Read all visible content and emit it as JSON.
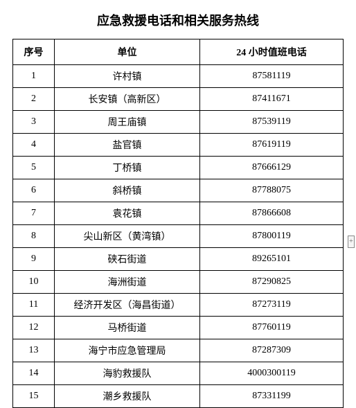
{
  "title": "应急救援电话和相关服务热线",
  "columns": {
    "seq": "序号",
    "unit": "单位",
    "phone": "24 小时值班电话"
  },
  "rows": [
    {
      "seq": "1",
      "unit": "许村镇",
      "phone": "87581119"
    },
    {
      "seq": "2",
      "unit": "长安镇（高新区）",
      "phone": "87411671"
    },
    {
      "seq": "3",
      "unit": "周王庙镇",
      "phone": "87539119"
    },
    {
      "seq": "4",
      "unit": "盐官镇",
      "phone": "87619119"
    },
    {
      "seq": "5",
      "unit": "丁桥镇",
      "phone": "87666129"
    },
    {
      "seq": "6",
      "unit": "斜桥镇",
      "phone": "87788075"
    },
    {
      "seq": "7",
      "unit": "袁花镇",
      "phone": "87866608"
    },
    {
      "seq": "8",
      "unit": "尖山新区（黄湾镇）",
      "phone": "87800119"
    },
    {
      "seq": "9",
      "unit": "硖石街道",
      "phone": "89265101"
    },
    {
      "seq": "10",
      "unit": "海洲街道",
      "phone": "87290825"
    },
    {
      "seq": "11",
      "unit": "经济开发区（海昌街道）",
      "phone": "87273119"
    },
    {
      "seq": "12",
      "unit": "马桥街道",
      "phone": "87760119"
    },
    {
      "seq": "13",
      "unit": "海宁市应急管理局",
      "phone": "87287309"
    },
    {
      "seq": "14",
      "unit": "海豹救援队",
      "phone": "4000300119"
    },
    {
      "seq": "15",
      "unit": "潮乡救援队",
      "phone": "87331199"
    }
  ],
  "styling": {
    "background_color": "#ffffff",
    "text_color": "#000000",
    "border_color": "#000000",
    "title_fontsize": 18,
    "cell_fontsize": 14,
    "font_family": "SimSun"
  }
}
